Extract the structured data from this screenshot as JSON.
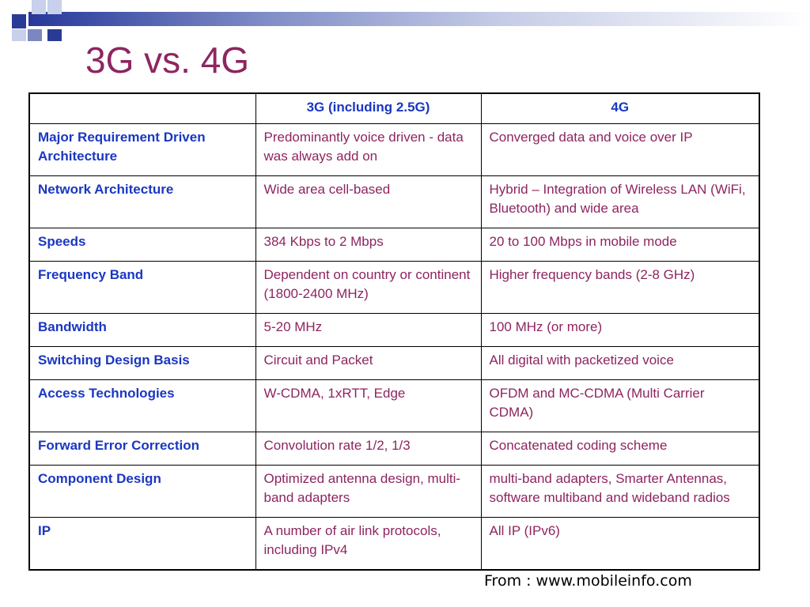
{
  "slide": {
    "title": "3G vs. 4G",
    "source": "From : www.mobileinfo.com"
  },
  "table": {
    "headers": [
      "",
      "3G (including 2.5G)",
      "4G"
    ],
    "rows": [
      [
        "Major Requirement Driven Architecture",
        "Predominantly voice driven - data was always add on",
        "Converged data and voice over IP"
      ],
      [
        "Network Architecture",
        "Wide area cell-based",
        "Hybrid – Integration of Wireless LAN (WiFi, Bluetooth) and wide area"
      ],
      [
        "Speeds",
        "384 Kbps to 2 Mbps",
        "20 to 100 Mbps in mobile mode"
      ],
      [
        "Frequency Band",
        "Dependent on country or continent (1800-2400 MHz)",
        "Higher frequency bands (2-8 GHz)"
      ],
      [
        "Bandwidth",
        "5-20 MHz",
        "100 MHz (or more)"
      ],
      [
        "Switching Design Basis",
        "Circuit and Packet",
        "All digital with packetized voice"
      ],
      [
        "Access Technologies",
        "W-CDMA, 1xRTT, Edge",
        "OFDM and MC-CDMA (Multi Carrier CDMA)"
      ],
      [
        "Forward Error Correction",
        "Convolution rate 1/2, 1/3",
        "Concatenated coding scheme"
      ],
      [
        "Component Design",
        "Optimized antenna design, multi-band adapters",
        "multi-band adapters, Smarter Antennas, software multiband and wideband radios"
      ],
      [
        "IP",
        "A number of air link protocols, including IPv4",
        "All IP (IPv6)"
      ]
    ]
  },
  "colors": {
    "title": "#8e2560",
    "feature_text": "#1a37c2",
    "value_text": "#8e2560",
    "header_accent": "#2a3b96"
  }
}
